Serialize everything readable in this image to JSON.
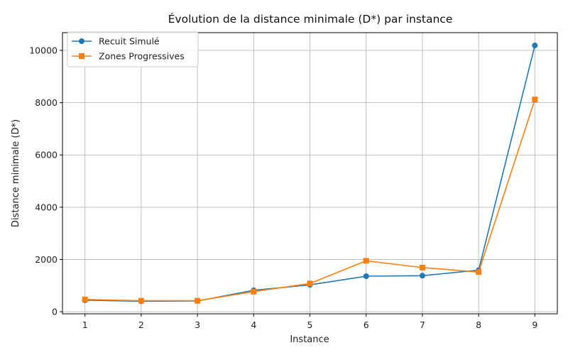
{
  "chart_data": {
    "type": "line",
    "title": "Évolution de la distance minimale (D*) par instance",
    "xlabel": "Instance",
    "ylabel": "Distance minimale (D*)",
    "x": [
      1,
      2,
      3,
      4,
      5,
      6,
      7,
      8,
      9
    ],
    "x_ticks": [
      "1",
      "2",
      "3",
      "4",
      "5",
      "6",
      "7",
      "8",
      "9"
    ],
    "y_ticks": [
      "0",
      "2000",
      "4000",
      "6000",
      "8000",
      "10000"
    ],
    "y_tick_values": [
      0,
      2000,
      4000,
      6000,
      8000,
      10000
    ],
    "xlim": [
      0.6,
      9.4
    ],
    "ylim": [
      -80,
      10680
    ],
    "grid": true,
    "legend_position": "upper-left",
    "series": [
      {
        "name": "Recuit Simulé",
        "marker": "circle",
        "color": "#1f77b4",
        "values": [
          440,
          400,
          410,
          820,
          1030,
          1360,
          1380,
          1590,
          10190
        ]
      },
      {
        "name": "Zones Progressives",
        "marker": "square",
        "color": "#ff7f0e",
        "values": [
          470,
          420,
          420,
          770,
          1080,
          1950,
          1690,
          1520,
          8120
        ]
      }
    ]
  }
}
